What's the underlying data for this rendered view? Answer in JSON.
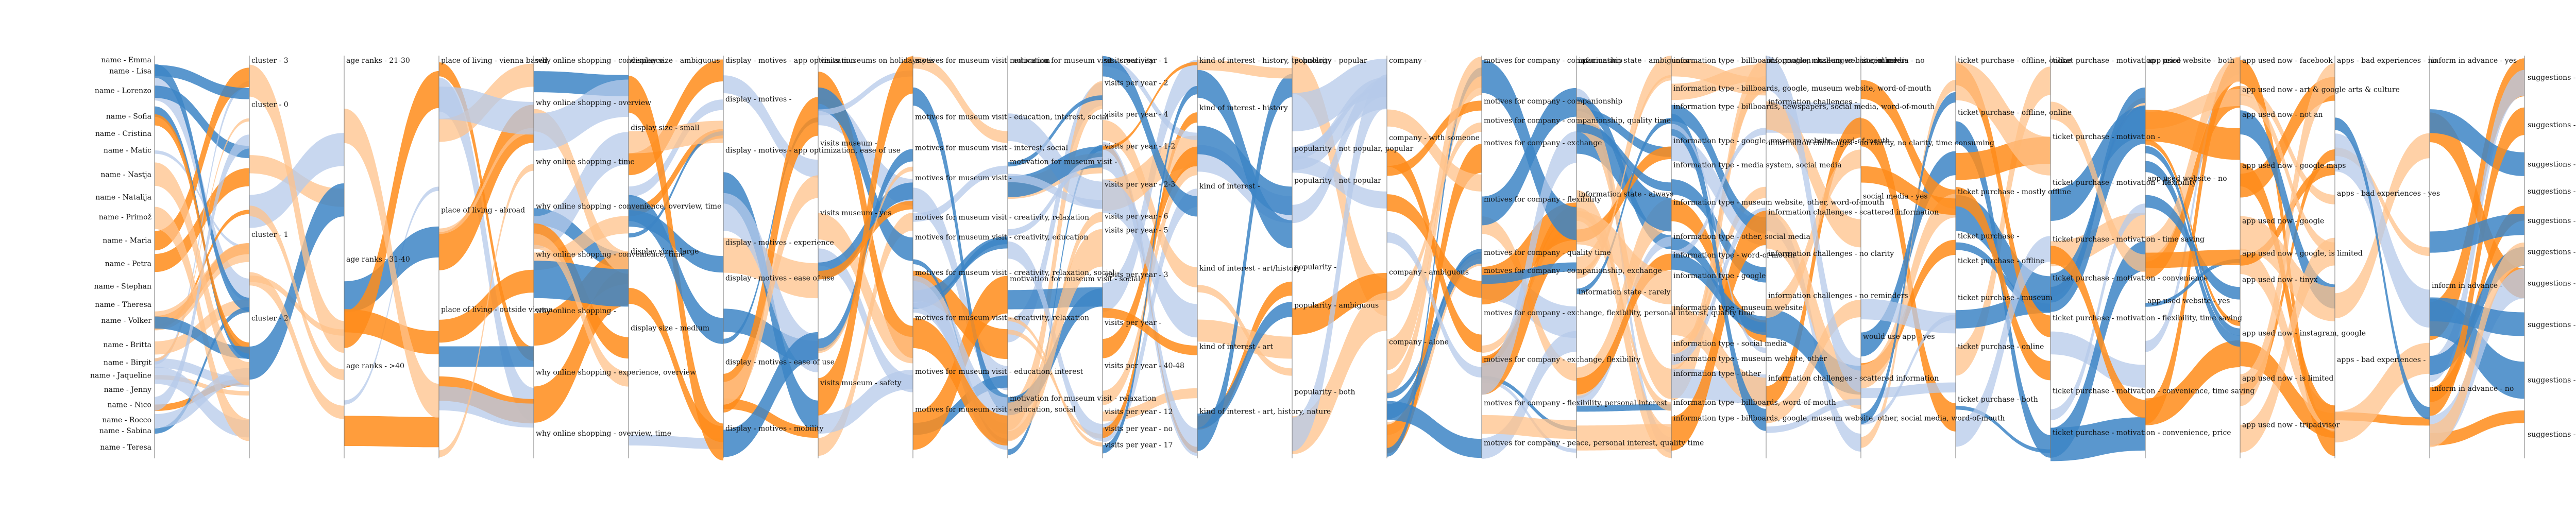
{
  "diagram": {
    "type": "parallel-sets",
    "colors": {
      "orange": "#ff8c1a",
      "light_orange": "#ffc28a",
      "blue": "#3d85c6",
      "light_blue": "#b5c9ea"
    },
    "axes": [
      {
        "id": "name",
        "side": "left",
        "labels": [
          "name - Emma",
          "name - Lisa",
          "name - Lorenzo",
          "name - Sofia",
          "name - Cristina",
          "name - Matic",
          "name - Nastja",
          "name - Natalija",
          "name - Primož",
          "name - Maria",
          "name - Petra",
          "name - Stephan",
          "name - Theresa",
          "name - Volker",
          "name - Britta",
          "name - Birgit",
          "name - Jaqueline",
          "name - Jenny",
          "name - Nico",
          "name - Rocco",
          "name - Sabina",
          "name - Teresa"
        ]
      },
      {
        "id": "cluster",
        "labels": [
          "cluster - 3",
          "cluster - 0",
          "cluster - 1",
          "cluster - 2"
        ]
      },
      {
        "id": "age",
        "labels": [
          "age ranks - 21-30",
          "age ranks - 31-40",
          "age ranks - >40"
        ]
      },
      {
        "id": "living",
        "labels": [
          "place of living - vienna based",
          "place of living - abroad",
          "place of living - outside vienna"
        ]
      },
      {
        "id": "shop",
        "labels": [
          "why online shopping - convenience",
          "why online shopping - overview",
          "why online shopping - time",
          "why online shopping - convenience, overview, time",
          "why online shopping - convenience, time",
          "why online shopping -",
          "why online shopping - experience, overview",
          "why online shopping - overview, time"
        ]
      },
      {
        "id": "display",
        "labels": [
          "display size - ambiguous",
          "display size - small",
          "display size - large",
          "display size - medium"
        ]
      },
      {
        "id": "motives",
        "labels": [
          "display - motives - app optimization",
          "display - motives -",
          "display - motives - app optimization, ease of use",
          "display - motives - experience",
          "display - motives - ease of use",
          "display - motives - ease of use",
          "display - motives - mobility"
        ]
      },
      {
        "id": "holidays",
        "labels": [
          "visits museums on holidays yes",
          "visits museum -",
          "visits museum - yes",
          "visits museum - safety"
        ]
      },
      {
        "id": "museum",
        "labels": [
          "motives for museum visit - education",
          "motives for museum visit - education, interest, social",
          "motives for museum visit - interest, social",
          "motives for museum visit -",
          "motives for museum visit - creativity, relaxation",
          "motives for museum visit - creativity, education",
          "motives for museum visit - creativity, relaxation, social",
          "motives for museum visit - creativity, relaxation",
          "motives for museum visit - education, interest",
          "motives for museum visit - education, social"
        ]
      },
      {
        "id": "motivation",
        "labels": [
          "motivation for museum visit - creativity",
          "motivation for museum visit -",
          "motivation for museum visit - social",
          "motivation for museum visit - relaxation"
        ]
      },
      {
        "id": "visits",
        "labels": [
          "visits per year - 1",
          "visits per year - 2",
          "visits per year - 4",
          "visits per year - 1-2",
          "visits per year - 2-3",
          "visits per year - 6",
          "visits per year - 5",
          "visits per year - 3",
          "visits per year -",
          "visits per year - 40-48",
          "visits per year - 12",
          "visits per year - no",
          "visits per year - 17"
        ]
      },
      {
        "id": "interest",
        "labels": [
          "kind of interest - history, technology",
          "kind of interest - history",
          "kind of interest -",
          "kind of interest - art/history",
          "kind of interest - art",
          "kind of interest - art, history, nature"
        ]
      },
      {
        "id": "popularity",
        "labels": [
          "popularity - popular",
          "popularity - not popular, popular",
          "popularity - not popular",
          "popularity -",
          "popularity - ambiguous",
          "popularity - both"
        ]
      },
      {
        "id": "company",
        "labels": [
          "company -",
          "company - with someone",
          "company - ambiguous",
          "company - alone"
        ]
      },
      {
        "id": "motcompany",
        "labels": [
          "motives for company - companionship",
          "motives for company - companionship",
          "motives for company - companionship, quality time",
          "motives for company - exchange",
          "motives for company - flexibility",
          "motives for company - quality time",
          "motives for company - companionship, exchange",
          "motives for company - exchange, flexibility, personal interest, quality time",
          "motives for company - exchange, flexibility",
          "motives for company - flexibility, personal interest",
          "motives for company - peace, personal interest, quality time"
        ]
      },
      {
        "id": "infostate",
        "labels": [
          "information state - ambiguous",
          "information state - always",
          "information state - rarely"
        ]
      },
      {
        "id": "infotype",
        "labels": [
          "information type - billboards, google, museum website, other",
          "information type - billboards, google, museum website, word-of-mouth",
          "information type - billboards, newspapers, social media, word-of-mouth",
          "information type - google, museum website, word-of-mouth",
          "information type - media system, social media",
          "information type - museum website, other, word-of-mouth",
          "information type - other, social media",
          "information type - word-of-mouth",
          "information type - google",
          "information type - museum website",
          "information type - social media",
          "information type - museum website, other",
          "information type - other",
          "information type - billboards, word-of-mouth",
          "information type - billboards, google, museum website, other, social media, word-of-mouth"
        ]
      },
      {
        "id": "challenges",
        "labels": [
          "information challenges - no reminders",
          "information challenges -",
          "information challenges - no clarity, no clarity, time consuming",
          "information challenges - scattered information",
          "information challenges - no clarity",
          "information challenges - no reminders",
          "information challenges - scattered information"
        ]
      },
      {
        "id": "social",
        "labels": [
          "social media - no",
          "social media - yes",
          "would use app - yes"
        ]
      },
      {
        "id": "ticket",
        "labels": [
          "ticket purchase - offline, online",
          "ticket purchase - offline, online",
          "ticket purchase - mostly offline",
          "ticket purchase -",
          "ticket purchase - offline",
          "ticket purchase - museum",
          "ticket purchase - online",
          "ticket purchase - both"
        ]
      },
      {
        "id": "ticketmot",
        "labels": [
          "ticket purchase - motivation - price",
          "ticket purchase - motivation -",
          "ticket purchase - motivation - flexibility",
          "ticket purchase - motivation - time saving",
          "ticket purchase - motivation - convenience",
          "ticket purchase - motivation - flexibility, time saving",
          "ticket purchase - motivation - convenience, time saving",
          "ticket purchase - motivation - convenience, price"
        ]
      },
      {
        "id": "appweb",
        "labels": [
          "app used website - both",
          "app used website - no",
          "app used website - yes"
        ]
      },
      {
        "id": "appnow",
        "labels": [
          "app used now - facebook",
          "app used now - art & google arts & culture",
          "app used now - not an",
          "app used now - google maps",
          "app used now - google",
          "app used now - google, is limited",
          "app used now - tinyx",
          "app used now - instagram, google",
          "app used now - is limited",
          "app used now - tripadvisor"
        ]
      },
      {
        "id": "appsexp",
        "labels": [
          "apps - bad experiences - no",
          "apps - bad experiences - yes",
          "apps - bad experiences -"
        ]
      },
      {
        "id": "inform",
        "labels": [
          "inform in advance - yes",
          "inform in advance -",
          "inform in advance - no"
        ]
      },
      {
        "id": "suggest",
        "side": "right",
        "labels": [
          "suggestions - a",
          "suggestions - b",
          "suggestions - c",
          "suggestions - d",
          "suggestions - e",
          "suggestions - f",
          "suggestions - g",
          "suggestions - h",
          "suggestions - i",
          "suggestions - j"
        ]
      }
    ]
  }
}
